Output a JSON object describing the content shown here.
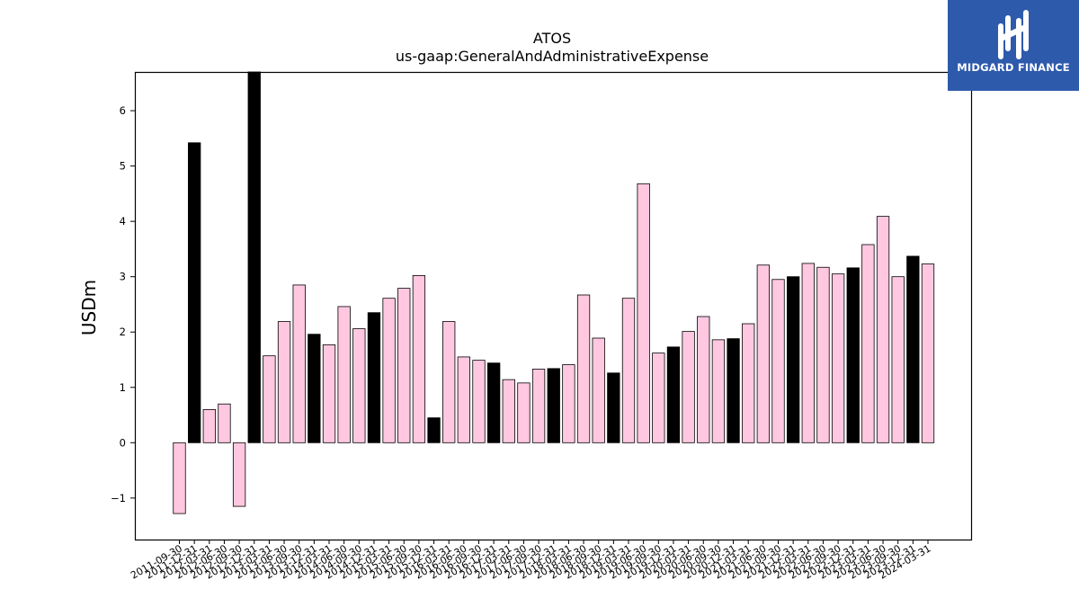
{
  "chart_data": {
    "type": "bar",
    "title": "ATOS",
    "subtitle": "us-gaap:GeneralAndAdministrativeExpense",
    "ylabel": "USDm",
    "xlabel": "",
    "ylim": [
      -1.75,
      6.7
    ],
    "yticks": [
      -1,
      0,
      1,
      2,
      3,
      4,
      5,
      6
    ],
    "grid": false,
    "colors": {
      "quarter": "#ffc8e0",
      "year_end": "#000000",
      "edge": "#000000"
    },
    "categories": [
      "2011-09-30",
      "2011-12-31",
      "2012-03-31",
      "2012-06-30",
      "2012-09-30",
      "2012-12-31",
      "2013-03-31",
      "2013-06-30",
      "2013-09-30",
      "2013-12-31",
      "2014-03-31",
      "2014-06-30",
      "2014-09-30",
      "2014-12-31",
      "2015-03-31",
      "2015-06-30",
      "2015-09-30",
      "2015-12-31",
      "2016-03-31",
      "2016-06-30",
      "2016-09-30",
      "2016-12-31",
      "2017-03-31",
      "2017-06-30",
      "2017-09-30",
      "2017-12-31",
      "2018-03-31",
      "2018-06-30",
      "2018-09-30",
      "2018-12-31",
      "2019-03-31",
      "2019-06-30",
      "2019-09-30",
      "2019-12-31",
      "2020-03-31",
      "2020-06-30",
      "2020-09-30",
      "2020-12-31",
      "2021-03-31",
      "2021-06-30",
      "2021-09-30",
      "2021-12-31",
      "2022-03-31",
      "2022-06-30",
      "2022-09-30",
      "2022-12-31",
      "2023-03-31",
      "2023-06-30",
      "2023-09-30",
      "2023-12-31",
      "2024-03-31"
    ],
    "tick_labels": [
      "2011-09-30",
      "2011-12-31",
      "2012-03-31",
      "2012-06-30",
      "2012-09-30",
      "2012-12-31",
      "2013-03-31",
      "2013-06-30",
      "2013-09-30",
      "2013-12-31",
      "2014-03-31",
      "2014-06-30",
      "2014-09-30",
      "2014-12-31",
      "2015-03-31",
      "2015-06-30",
      "2015-09-30",
      "2015-12-31",
      "2016-03-31",
      "2016-06-30",
      "2016-09-30",
      "2016-12-31",
      "2017-03-31",
      "2017-06-30",
      "2017-09-30",
      "2017-12-31",
      "2018-03-31",
      "2018-06-30",
      "2018-09-30",
      "2018-12-31",
      "2019-03-31",
      "2019-06-30",
      "2019-09-30",
      "2019-12-31",
      "2020-03-31",
      "2020-06-30",
      "2020-09-30",
      "2020-12-31",
      "2021-03-31",
      "2021-06-30",
      "2021-09-30",
      "2021-12-31",
      "2022-03-31",
      "2022-06-30",
      "2022-09-30",
      "2022-12-31",
      "2023-03-31",
      "2023-06-30",
      "2023-09-30",
      "2023-12-31",
      "2024-03-31"
    ],
    "values": [
      -1.28,
      5.42,
      0.6,
      0.7,
      -1.15,
      6.8,
      1.57,
      2.19,
      2.85,
      1.96,
      1.77,
      2.46,
      2.06,
      2.35,
      2.61,
      2.79,
      3.02,
      0.45,
      2.19,
      1.55,
      1.49,
      1.44,
      1.14,
      1.08,
      1.33,
      1.34,
      1.41,
      2.67,
      1.89,
      1.26,
      2.61,
      4.68,
      1.62,
      1.73,
      2.01,
      2.28,
      1.86,
      1.88,
      2.15,
      3.21,
      2.95,
      3.0,
      3.24,
      3.17,
      3.05,
      3.16,
      3.58,
      4.09,
      3.0,
      3.37,
      3.23
    ],
    "year_end": [
      false,
      true,
      false,
      false,
      false,
      true,
      false,
      false,
      false,
      true,
      false,
      false,
      false,
      true,
      false,
      false,
      false,
      true,
      false,
      false,
      false,
      true,
      false,
      false,
      false,
      true,
      false,
      false,
      false,
      true,
      false,
      false,
      false,
      true,
      false,
      false,
      false,
      true,
      false,
      false,
      false,
      true,
      false,
      false,
      false,
      true,
      false,
      false,
      false,
      true,
      false
    ]
  },
  "logo": {
    "text": "MIDGARD FINANCE",
    "background": "#2e5aac"
  }
}
